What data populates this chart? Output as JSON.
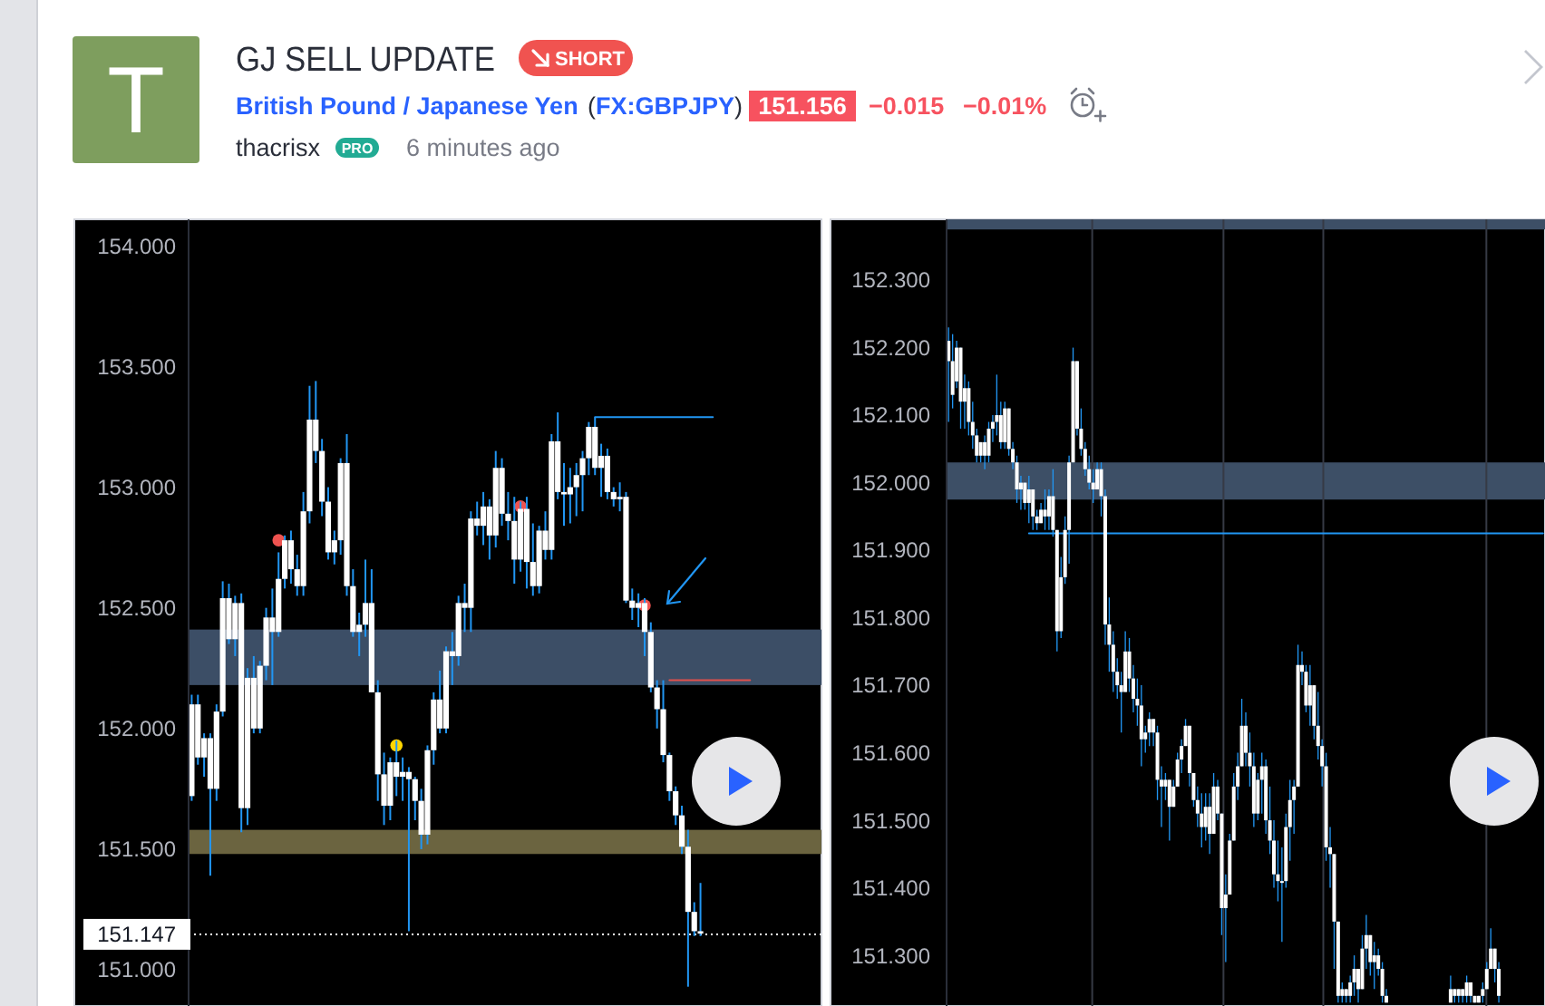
{
  "chart_data": [
    {
      "type": "other",
      "title": "GJ SELL UPDATE",
      "annotations": [
        "T",
        "SHORT",
        "British Pound / Japanese Yen",
        "(FX:GBPJPY)",
        "151.156",
        "−0.015",
        "−0.01%",
        "thacrisx",
        "PRO",
        "6 minutes ago"
      ]
    },
    {
      "type": "candlestick",
      "tick_labels": "y",
      "color": "#ffffff",
      "ylim": [
        150.85,
        154.11
      ],
      "yticks": [
        {
          "value": 151,
          "label": "151.000"
        },
        {
          "value": 151.5,
          "label": "151.500"
        },
        {
          "value": 152,
          "label": "152.000"
        },
        {
          "value": 152.5,
          "label": "152.500"
        },
        {
          "value": 153,
          "label": "153.000"
        },
        {
          "value": 153.5,
          "label": "153.500"
        },
        {
          "value": 154,
          "label": "154.000"
        }
      ],
      "categories": [
        null,
        null,
        null,
        null,
        null,
        null,
        null,
        null,
        null,
        null,
        null,
        null,
        null,
        null,
        null,
        null,
        null,
        null,
        null,
        null,
        null,
        null,
        null,
        null,
        null,
        null,
        null,
        null,
        null,
        null,
        null,
        null,
        null,
        null,
        null,
        null,
        null,
        null,
        null,
        null,
        null,
        null,
        null,
        null,
        null,
        null,
        null,
        null,
        null,
        null,
        null,
        null,
        null,
        null,
        null,
        null,
        null,
        null,
        null,
        null,
        null,
        null,
        null,
        null,
        null,
        null,
        null,
        null,
        null,
        null,
        null,
        null,
        null,
        null,
        null,
        null,
        null,
        null,
        null,
        null,
        null,
        null,
        null,
        null,
        null,
        null,
        null,
        null,
        null,
        null,
        null,
        null,
        null,
        null,
        null,
        null,
        null,
        null,
        null,
        null,
        null,
        null
      ],
      "ohlc": [
        [
          151.72,
          152.14,
          151.7,
          152.1
        ],
        [
          151.88,
          152.14,
          151.85,
          152.1
        ],
        [
          151.88,
          151.98,
          151.8,
          151.96
        ],
        [
          151.75,
          151.98,
          151.39,
          151.96
        ],
        [
          151.75,
          152.1,
          151.7,
          152.07
        ],
        [
          152.07,
          152.61,
          152.05,
          152.54
        ],
        [
          152.37,
          152.6,
          152.35,
          152.54
        ],
        [
          152.37,
          152.55,
          152.3,
          152.52
        ],
        [
          151.67,
          152.56,
          151.57,
          152.52
        ],
        [
          151.67,
          152.25,
          151.6,
          152.21
        ],
        [
          152.0,
          152.3,
          151.98,
          152.21
        ],
        [
          152.0,
          152.28,
          151.98,
          152.26
        ],
        [
          152.26,
          152.5,
          152.2,
          152.46
        ],
        [
          152.4,
          152.58,
          152.18,
          152.46
        ],
        [
          152.4,
          152.73,
          152.38,
          152.62
        ],
        [
          152.62,
          152.8,
          152.58,
          152.78
        ],
        [
          152.66,
          152.82,
          152.6,
          152.78
        ],
        [
          152.59,
          152.72,
          152.55,
          152.66
        ],
        [
          152.59,
          152.98,
          152.55,
          152.9
        ],
        [
          152.9,
          153.42,
          152.85,
          153.28
        ],
        [
          153.15,
          153.44,
          153.1,
          153.28
        ],
        [
          152.94,
          153.2,
          152.88,
          153.15
        ],
        [
          152.73,
          153.0,
          152.7,
          152.94
        ],
        [
          152.73,
          152.82,
          152.68,
          152.78
        ],
        [
          152.78,
          153.12,
          152.72,
          153.1
        ],
        [
          152.59,
          153.22,
          152.55,
          153.1
        ],
        [
          152.4,
          152.66,
          152.38,
          152.59
        ],
        [
          152.4,
          152.48,
          152.3,
          152.43
        ],
        [
          152.43,
          152.7,
          152.38,
          152.52
        ],
        [
          152.15,
          152.66,
          152.15,
          152.52
        ],
        [
          151.81,
          152.2,
          151.7,
          152.15
        ],
        [
          151.68,
          151.9,
          151.6,
          151.81
        ],
        [
          151.68,
          151.88,
          151.62,
          151.86
        ],
        [
          151.8,
          151.95,
          151.72,
          151.86
        ],
        [
          151.8,
          151.88,
          151.7,
          151.82
        ],
        [
          151.79,
          151.84,
          151.16,
          151.82
        ],
        [
          151.7,
          151.8,
          151.62,
          151.79
        ],
        [
          151.56,
          151.75,
          151.5,
          151.7
        ],
        [
          151.56,
          151.93,
          151.52,
          151.91
        ],
        [
          151.91,
          152.15,
          151.85,
          152.12
        ],
        [
          152.0,
          152.24,
          151.98,
          152.12
        ],
        [
          152.0,
          152.34,
          151.98,
          152.32
        ],
        [
          152.3,
          152.4,
          152.18,
          152.32
        ],
        [
          152.3,
          152.55,
          152.26,
          152.52
        ],
        [
          152.5,
          152.6,
          152.4,
          152.52
        ],
        [
          152.5,
          152.9,
          152.4,
          152.87
        ],
        [
          152.84,
          152.94,
          152.8,
          152.87
        ],
        [
          152.84,
          152.98,
          152.76,
          152.92
        ],
        [
          152.8,
          152.95,
          152.7,
          152.92
        ],
        [
          152.8,
          153.15,
          152.75,
          153.08
        ],
        [
          152.89,
          153.12,
          152.84,
          153.08
        ],
        [
          152.86,
          152.98,
          152.78,
          152.89
        ],
        [
          152.7,
          152.96,
          152.6,
          152.86
        ],
        [
          152.7,
          152.94,
          152.65,
          152.91
        ],
        [
          152.69,
          152.96,
          152.58,
          152.91
        ],
        [
          152.59,
          152.85,
          152.55,
          152.69
        ],
        [
          152.59,
          152.84,
          152.56,
          152.82
        ],
        [
          152.74,
          152.9,
          152.7,
          152.82
        ],
        [
          152.74,
          153.22,
          152.7,
          153.19
        ],
        [
          152.98,
          153.31,
          152.95,
          153.19
        ],
        [
          152.97,
          153.1,
          152.84,
          152.98
        ],
        [
          152.97,
          153.08,
          152.85,
          153.0
        ],
        [
          153.0,
          153.1,
          152.88,
          153.05
        ],
        [
          153.05,
          153.15,
          152.9,
          153.12
        ],
        [
          153.12,
          153.27,
          153.05,
          153.25
        ],
        [
          153.08,
          153.29,
          153.05,
          153.25
        ],
        [
          153.08,
          153.18,
          152.96,
          153.13
        ],
        [
          152.98,
          153.16,
          152.95,
          153.13
        ],
        [
          152.95,
          153.0,
          152.92,
          152.98
        ],
        [
          152.95,
          153.02,
          152.9,
          152.96
        ],
        [
          152.53,
          152.98,
          152.52,
          152.96
        ],
        [
          152.5,
          152.58,
          152.45,
          152.53
        ],
        [
          152.5,
          152.56,
          152.42,
          152.52
        ],
        [
          152.4,
          152.54,
          152.3,
          152.52
        ],
        [
          152.17,
          152.44,
          152.15,
          152.4
        ],
        [
          152.08,
          152.2,
          152.0,
          152.17
        ],
        [
          151.89,
          152.2,
          151.86,
          152.08
        ],
        [
          151.74,
          151.9,
          151.7,
          151.89
        ],
        [
          151.64,
          151.76,
          151.6,
          151.74
        ],
        [
          151.51,
          151.68,
          151.48,
          151.64
        ],
        [
          151.24,
          151.58,
          150.93,
          151.51
        ],
        [
          151.16,
          151.28,
          151.14,
          151.24
        ],
        [
          151.15,
          151.36,
          151.14,
          151.16
        ],
        null,
        null,
        null,
        null,
        null,
        null,
        null,
        null,
        null,
        null,
        null,
        null,
        null,
        null,
        null,
        null,
        null,
        null,
        null
      ],
      "series": [
        {
          "type": "scatter",
          "marker": "circle",
          "color": "#ef5350",
          "values": [
            null,
            null,
            null,
            null,
            null,
            null,
            null,
            null,
            null,
            null,
            null,
            null,
            null,
            null,
            152.78,
            null,
            null,
            null,
            null,
            null,
            null,
            null,
            null,
            null,
            null,
            null,
            null,
            null,
            null,
            null,
            null,
            null,
            null,
            null,
            null,
            null,
            null,
            null,
            null,
            null,
            null,
            null,
            null,
            null,
            null,
            null,
            null,
            null,
            null,
            null,
            null,
            null,
            null,
            152.92,
            null,
            null,
            null,
            null,
            null,
            null,
            null,
            null,
            null,
            null,
            null,
            null,
            null,
            null,
            null,
            null,
            null,
            null,
            null,
            152.51,
            null,
            null,
            null,
            null,
            null,
            null,
            null,
            null,
            null,
            null,
            null,
            null,
            null,
            null,
            null,
            null,
            null,
            null,
            null,
            null,
            null,
            null,
            null,
            null,
            null,
            null,
            null,
            null
          ]
        },
        {
          "type": "scatter",
          "marker": "circle",
          "color": "#ffd600",
          "values": [
            null,
            null,
            null,
            null,
            null,
            null,
            null,
            null,
            null,
            null,
            null,
            null,
            null,
            null,
            null,
            null,
            null,
            null,
            null,
            null,
            null,
            null,
            null,
            null,
            null,
            null,
            null,
            null,
            null,
            null,
            null,
            null,
            null,
            151.93,
            null,
            null,
            null,
            null,
            null,
            null,
            null,
            null,
            null,
            null,
            null,
            null,
            null,
            null,
            null,
            null,
            null,
            null,
            null,
            null,
            null,
            null,
            null,
            null,
            null,
            null,
            null,
            null,
            null,
            null,
            null,
            null,
            null,
            null,
            null,
            null,
            null,
            null,
            null,
            null,
            null,
            null,
            null,
            null,
            null,
            null,
            null,
            null,
            null,
            null,
            null,
            null,
            null,
            null,
            null,
            null,
            null,
            null,
            null,
            null,
            null,
            null,
            null,
            null,
            null,
            null,
            null,
            null
          ]
        },
        {
          "type": "line",
          "color": "#2196f3",
          "values": [
            null,
            null,
            null,
            null,
            null,
            null,
            null,
            null,
            null,
            null,
            null,
            null,
            null,
            null,
            null,
            null,
            null,
            null,
            null,
            null,
            null,
            null,
            null,
            null,
            null,
            null,
            null,
            null,
            null,
            null,
            null,
            null,
            null,
            null,
            null,
            null,
            null,
            null,
            null,
            null,
            null,
            null,
            null,
            null,
            null,
            null,
            null,
            null,
            null,
            null,
            null,
            null,
            null,
            null,
            null,
            null,
            null,
            null,
            null,
            null,
            null,
            null,
            null,
            null,
            null,
            153.29,
            153.29,
            153.29,
            153.29,
            153.29,
            153.29,
            153.29,
            153.29,
            153.29,
            153.29,
            153.29,
            153.29,
            153.29,
            153.29,
            153.29,
            153.29,
            153.29,
            153.29,
            153.29,
            153.29,
            null,
            null,
            null,
            null,
            null,
            null,
            null,
            null,
            null,
            null,
            null,
            null,
            null,
            null,
            null,
            null,
            null
          ]
        },
        {
          "type": "line",
          "color": "#e2504c",
          "values": [
            null,
            null,
            null,
            null,
            null,
            null,
            null,
            null,
            null,
            null,
            null,
            null,
            null,
            null,
            null,
            null,
            null,
            null,
            null,
            null,
            null,
            null,
            null,
            null,
            null,
            null,
            null,
            null,
            null,
            null,
            null,
            null,
            null,
            null,
            null,
            null,
            null,
            null,
            null,
            null,
            null,
            null,
            null,
            null,
            null,
            null,
            null,
            null,
            null,
            null,
            null,
            null,
            null,
            null,
            null,
            null,
            null,
            null,
            null,
            null,
            null,
            null,
            null,
            null,
            null,
            null,
            null,
            null,
            null,
            null,
            null,
            null,
            null,
            null,
            null,
            null,
            null,
            152.2,
            152.2,
            152.2,
            152.2,
            152.2,
            152.2,
            152.2,
            152.2,
            152.2,
            152.2,
            152.2,
            152.2,
            152.2,
            152.2,
            null,
            null,
            null,
            null,
            null,
            null,
            null,
            null,
            null,
            null,
            null
          ]
        }
      ],
      "bands": [
        {
          "axis": "y",
          "from": 152.18,
          "to": 152.41,
          "color": "#3c4e66"
        },
        {
          "axis": "y",
          "from": 151.48,
          "to": 151.58,
          "color": "#6b6440"
        }
      ],
      "ref_lines": [
        {
          "axis": "y",
          "value": 151.147,
          "label": "151.147",
          "color": "#ffffff",
          "line_style": "dotted"
        }
      ]
    },
    {
      "type": "candlestick",
      "tick_labels": "y",
      "color": "#ffffff",
      "ylim": [
        151.225,
        152.39
      ],
      "yticks": [
        {
          "value": 151.3,
          "label": "151.300"
        },
        {
          "value": 151.4,
          "label": "151.400"
        },
        {
          "value": 151.5,
          "label": "151.500"
        },
        {
          "value": 151.6,
          "label": "151.600"
        },
        {
          "value": 151.7,
          "label": "151.700"
        },
        {
          "value": 151.8,
          "label": "151.800"
        },
        {
          "value": 151.9,
          "label": "151.900"
        },
        {
          "value": 152,
          "label": "152.000"
        },
        {
          "value": 152.1,
          "label": "152.100"
        },
        {
          "value": 152.2,
          "label": "152.200"
        },
        {
          "value": 152.3,
          "label": "152.300"
        }
      ],
      "categories": [
        null,
        null,
        null,
        null,
        null,
        null,
        null,
        null,
        null,
        null,
        null,
        null,
        null,
        null,
        null,
        null,
        null,
        null,
        null,
        null,
        null,
        null,
        null,
        null,
        null,
        null,
        null,
        null,
        null,
        null,
        null,
        null,
        null,
        null,
        null,
        null,
        null,
        null,
        null,
        null,
        null,
        null,
        null,
        null,
        null,
        null,
        null,
        null,
        null,
        null,
        null,
        null,
        null,
        null,
        null,
        null,
        null,
        null,
        null,
        null,
        null,
        null,
        null,
        null,
        null,
        null,
        null,
        null,
        null,
        null,
        null,
        null,
        null,
        null,
        null,
        null,
        null,
        null,
        null,
        null,
        null,
        null,
        null,
        null,
        null,
        null,
        null,
        null,
        null,
        null,
        null,
        null,
        null,
        null,
        null,
        null,
        null,
        null,
        null,
        null,
        null,
        null,
        null,
        null,
        null,
        null,
        null,
        null,
        null,
        null,
        null,
        null,
        null,
        null,
        null,
        null,
        null,
        null,
        null,
        null,
        null,
        null,
        null,
        null,
        null,
        null,
        null,
        null,
        null,
        null,
        null,
        null,
        null,
        null,
        null,
        null,
        null,
        null,
        null,
        null,
        null,
        null,
        null,
        null,
        null,
        null,
        null,
        null,
        null
      ],
      "ohlc": [
        [
          152.18,
          152.23,
          152.09,
          152.21
        ],
        [
          152.13,
          152.22,
          152.11,
          152.18
        ],
        [
          152.15,
          152.21,
          152.14,
          152.2
        ],
        [
          152.12,
          152.2,
          152.08,
          152.2
        ],
        [
          152.12,
          152.16,
          152.08,
          152.14
        ],
        [
          152.09,
          152.15,
          152.07,
          152.14
        ],
        [
          152.07,
          152.12,
          152.05,
          152.09
        ],
        [
          152.04,
          152.08,
          152.03,
          152.07
        ],
        [
          152.04,
          152.06,
          152.03,
          152.06
        ],
        [
          152.04,
          152.07,
          152.02,
          152.06
        ],
        [
          152.04,
          152.09,
          152.03,
          152.08
        ],
        [
          152.08,
          152.1,
          152.06,
          152.09
        ],
        [
          152.09,
          152.16,
          152.07,
          152.1
        ],
        [
          152.06,
          152.12,
          152.05,
          152.1
        ],
        [
          152.06,
          152.12,
          152.05,
          152.11
        ],
        [
          152.05,
          152.11,
          152.04,
          152.11
        ],
        [
          152.03,
          152.06,
          152.02,
          152.05
        ],
        [
          151.99,
          152.04,
          151.97,
          152.03
        ],
        [
          151.99,
          152.01,
          151.96,
          152.0
        ],
        [
          151.97,
          152.0,
          151.96,
          152.0
        ],
        [
          151.97,
          152.01,
          151.94,
          151.99
        ],
        [
          151.95,
          151.99,
          151.93,
          151.99
        ],
        [
          151.94,
          151.96,
          151.93,
          151.95
        ],
        [
          151.94,
          151.97,
          151.94,
          151.96
        ],
        [
          151.95,
          151.99,
          151.93,
          151.96
        ],
        [
          151.95,
          151.99,
          151.93,
          151.98
        ],
        [
          151.93,
          152.02,
          151.92,
          151.98
        ],
        [
          151.78,
          151.93,
          151.75,
          151.93
        ],
        [
          151.78,
          151.89,
          151.77,
          151.86
        ],
        [
          151.86,
          151.95,
          151.85,
          151.93
        ],
        [
          151.93,
          152.04,
          151.88,
          152.03
        ],
        [
          152.03,
          152.2,
          152.03,
          152.18
        ],
        [
          152.08,
          152.18,
          152.07,
          152.18
        ],
        [
          152.05,
          152.11,
          152.04,
          152.08
        ],
        [
          152.02,
          152.06,
          152.01,
          152.05
        ],
        [
          152.0,
          152.04,
          151.99,
          152.02
        ],
        [
          151.99,
          152.02,
          151.97,
          152.0
        ],
        [
          151.99,
          152.03,
          151.99,
          152.02
        ],
        [
          151.98,
          152.03,
          151.95,
          152.02
        ],
        [
          151.79,
          151.99,
          151.76,
          151.98
        ],
        [
          151.76,
          151.83,
          151.72,
          151.79
        ],
        [
          151.72,
          151.78,
          151.69,
          151.76
        ],
        [
          151.7,
          151.74,
          151.68,
          151.72
        ],
        [
          151.69,
          151.72,
          151.63,
          151.7
        ],
        [
          151.69,
          151.78,
          151.69,
          151.75
        ],
        [
          151.71,
          151.77,
          151.69,
          151.75
        ],
        [
          151.68,
          151.73,
          151.66,
          151.71
        ],
        [
          151.67,
          151.71,
          151.64,
          151.68
        ],
        [
          151.62,
          151.7,
          151.58,
          151.67
        ],
        [
          151.62,
          151.64,
          151.6,
          151.63
        ],
        [
          151.63,
          151.66,
          151.61,
          151.65
        ],
        [
          151.63,
          151.65,
          151.61,
          151.65
        ],
        [
          151.56,
          151.64,
          151.53,
          151.63
        ],
        [
          151.55,
          151.58,
          151.49,
          151.56
        ],
        [
          151.55,
          151.57,
          151.53,
          151.56
        ],
        [
          151.52,
          151.56,
          151.47,
          151.56
        ],
        [
          151.52,
          151.56,
          151.52,
          151.55
        ],
        [
          151.55,
          151.6,
          151.55,
          151.59
        ],
        [
          151.59,
          151.62,
          151.57,
          151.61
        ],
        [
          151.61,
          151.65,
          151.61,
          151.64
        ],
        [
          151.57,
          151.64,
          151.55,
          151.64
        ],
        [
          151.53,
          151.57,
          151.52,
          151.57
        ],
        [
          151.51,
          151.55,
          151.49,
          151.53
        ],
        [
          151.49,
          151.54,
          151.46,
          151.51
        ],
        [
          151.49,
          151.54,
          151.47,
          151.52
        ],
        [
          151.48,
          151.54,
          151.45,
          151.52
        ],
        [
          151.48,
          151.57,
          151.48,
          151.55
        ],
        [
          151.51,
          151.56,
          151.5,
          151.55
        ],
        [
          151.37,
          151.51,
          151.33,
          151.51
        ],
        [
          151.37,
          151.42,
          151.29,
          151.39
        ],
        [
          151.39,
          151.48,
          151.39,
          151.47
        ],
        [
          151.47,
          151.57,
          151.47,
          151.55
        ],
        [
          151.55,
          151.6,
          151.53,
          151.58
        ],
        [
          151.58,
          151.68,
          151.58,
          151.64
        ],
        [
          151.6,
          151.66,
          151.58,
          151.64
        ],
        [
          151.58,
          151.63,
          151.55,
          151.6
        ],
        [
          151.51,
          151.6,
          151.49,
          151.58
        ],
        [
          151.51,
          151.57,
          151.5,
          151.56
        ],
        [
          151.56,
          151.6,
          151.51,
          151.58
        ],
        [
          151.5,
          151.59,
          151.48,
          151.58
        ],
        [
          151.47,
          151.55,
          151.45,
          151.5
        ],
        [
          151.42,
          151.5,
          151.4,
          151.47
        ],
        [
          151.41,
          151.47,
          151.38,
          151.42
        ],
        [
          151.41,
          151.46,
          151.32,
          151.41
        ],
        [
          151.41,
          151.51,
          151.4,
          151.49
        ],
        [
          151.49,
          151.56,
          151.44,
          151.53
        ],
        [
          151.53,
          151.56,
          151.48,
          151.55
        ],
        [
          151.55,
          151.76,
          151.55,
          151.73
        ],
        [
          151.72,
          151.75,
          151.7,
          151.73
        ],
        [
          151.67,
          151.73,
          151.66,
          151.72
        ],
        [
          151.67,
          151.73,
          151.64,
          151.7
        ],
        [
          151.64,
          151.7,
          151.62,
          151.7
        ],
        [
          151.61,
          151.69,
          151.59,
          151.64
        ],
        [
          151.58,
          151.62,
          151.55,
          151.61
        ],
        [
          151.46,
          151.6,
          151.44,
          151.58
        ],
        [
          151.45,
          151.49,
          151.4,
          151.46
        ],
        [
          151.35,
          151.45,
          151.28,
          151.45
        ],
        [
          151.24,
          151.35,
          151.23,
          151.35
        ],
        [
          151.24,
          151.26,
          151.23,
          151.25
        ],
        [
          151.24,
          151.25,
          151.23,
          151.25
        ],
        [
          151.24,
          151.27,
          151.23,
          151.26
        ],
        [
          151.26,
          151.3,
          151.24,
          151.28
        ],
        [
          151.25,
          151.28,
          151.23,
          151.28
        ],
        [
          151.25,
          151.33,
          151.25,
          151.31
        ],
        [
          151.31,
          151.36,
          151.28,
          151.33
        ],
        [
          151.29,
          151.33,
          151.27,
          151.33
        ],
        [
          151.29,
          151.32,
          151.25,
          151.3
        ],
        [
          151.28,
          151.31,
          151.27,
          151.3
        ],
        [
          151.24,
          151.29,
          151.23,
          151.28
        ],
        [
          151.23,
          151.25,
          151.23,
          151.24
        ],
        null,
        null,
        null,
        null,
        null,
        null,
        null,
        null,
        null,
        null,
        null,
        null,
        null,
        null,
        null,
        [
          151.23,
          151.27,
          151.23,
          151.25
        ],
        [
          151.24,
          151.25,
          151.23,
          151.25
        ],
        [
          151.24,
          151.25,
          151.23,
          151.25
        ],
        [
          151.24,
          151.25,
          151.23,
          151.25
        ],
        [
          151.24,
          151.27,
          151.23,
          151.26
        ],
        [
          151.24,
          151.26,
          151.23,
          151.26
        ],
        [
          151.23,
          151.24,
          151.23,
          151.24
        ],
        [
          151.23,
          151.24,
          151.23,
          151.24
        ],
        [
          151.24,
          151.26,
          151.23,
          151.25
        ],
        [
          151.25,
          151.29,
          151.25,
          151.28
        ],
        [
          151.28,
          151.34,
          151.28,
          151.31
        ],
        [
          151.28,
          151.31,
          151.26,
          151.31
        ],
        [
          151.24,
          151.29,
          151.23,
          151.28
        ],
        null,
        null,
        null,
        null,
        null,
        null,
        null,
        null,
        null,
        null,
        null
      ],
      "series": [
        {
          "type": "line",
          "color": "#2196f3",
          "values": [
            null,
            null,
            null,
            null,
            null,
            null,
            null,
            null,
            null,
            null,
            null,
            null,
            null,
            null,
            null,
            null,
            null,
            null,
            null,
            null,
            151.925,
            151.925,
            151.925,
            151.925,
            151.925,
            151.925,
            151.925,
            151.925,
            151.925,
            151.925,
            151.925,
            151.925,
            151.925,
            151.925,
            151.925,
            151.925,
            151.925,
            151.925,
            151.925,
            151.925,
            151.925,
            151.925,
            151.925,
            151.925,
            151.925,
            151.925,
            151.925,
            151.925,
            151.925,
            151.925,
            151.925,
            151.925,
            151.925,
            151.925,
            151.925,
            151.925,
            151.925,
            151.925,
            151.925,
            151.925,
            151.925,
            151.925,
            151.925,
            151.925,
            151.925,
            151.925,
            151.925,
            151.925,
            151.925,
            151.925,
            151.925,
            151.925,
            151.925,
            151.925,
            151.925,
            151.925,
            151.925,
            151.925,
            151.925,
            151.925,
            151.925,
            151.925,
            151.925,
            151.925,
            151.925,
            151.925,
            151.925,
            151.925,
            151.925,
            151.925,
            151.925,
            151.925,
            151.925,
            151.925,
            151.925,
            151.925,
            151.925,
            151.925,
            151.925,
            151.925,
            151.925,
            151.925,
            151.925,
            151.925,
            151.925,
            151.925,
            151.925,
            151.925,
            151.925,
            151.925,
            151.925,
            151.925,
            151.925,
            151.925,
            151.925,
            151.925,
            151.925,
            151.925,
            151.925,
            151.925,
            151.925,
            151.925,
            151.925,
            151.925,
            151.925,
            151.925,
            151.925,
            151.925,
            151.925,
            151.925,
            151.925,
            151.925,
            151.925,
            151.925,
            151.925,
            151.925,
            151.925,
            151.925,
            151.925,
            151.925,
            151.925,
            151.925,
            151.925,
            151.925,
            151.925,
            151.925,
            151.925,
            151.925,
            151.925
          ]
        }
      ],
      "bands": [
        {
          "axis": "y",
          "from": 151.975,
          "to": 152.03,
          "color": "#3d4f66"
        },
        {
          "axis": "y",
          "from": 152.375,
          "to": 152.39,
          "color": "#3d4f66"
        }
      ]
    }
  ]
}
